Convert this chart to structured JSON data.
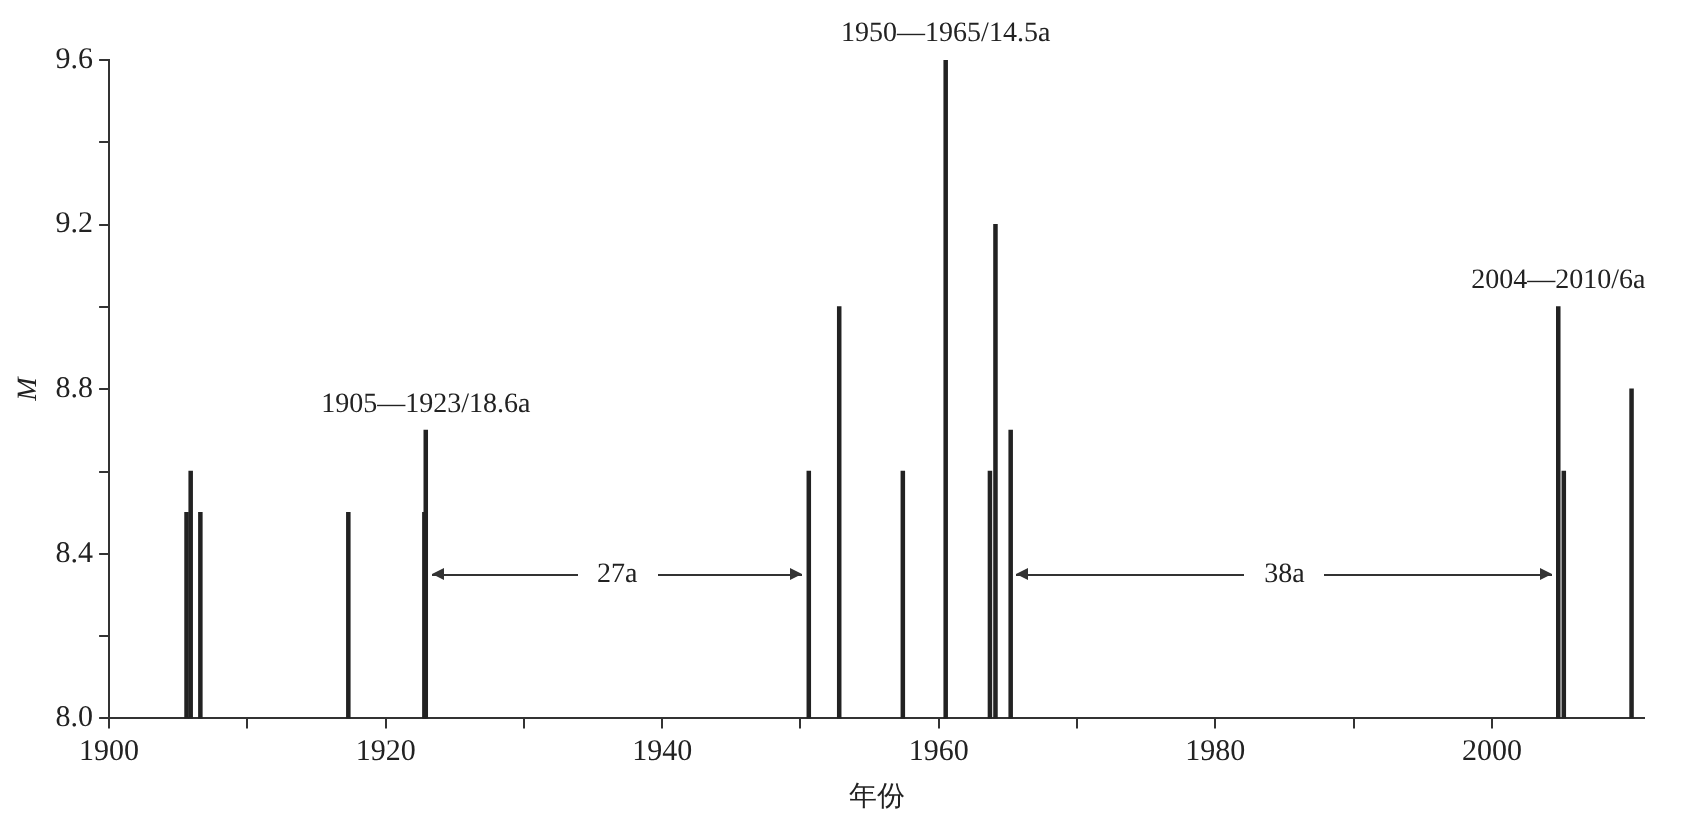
{
  "chart_data": {
    "type": "bar",
    "xlabel": "年份",
    "ylabel": "M",
    "x": [
      1905.6,
      1905.9,
      1906.6,
      1917.3,
      1922.8,
      1922.9,
      1950.6,
      1952.8,
      1957.4,
      1960.5,
      1963.7,
      1964.1,
      1965.2,
      2004.8,
      2005.2,
      2010.1
    ],
    "values": [
      8.5,
      8.6,
      8.5,
      8.5,
      8.5,
      8.7,
      8.6,
      9.0,
      8.6,
      9.6,
      8.6,
      9.2,
      8.7,
      9.0,
      8.6,
      8.8
    ],
    "color": "#222222",
    "xlim": [
      1900,
      2011
    ],
    "xticks": [
      1900,
      {
        "value": 1910,
        "label": null
      },
      1920,
      {
        "value": 1930,
        "label": null
      },
      1940,
      {
        "value": 1950,
        "label": null
      },
      1960,
      {
        "value": 1970,
        "label": null
      },
      1980,
      {
        "value": 1990,
        "label": null
      },
      2000
    ],
    "ylim": [
      8.0,
      9.6
    ],
    "yticks": [
      {
        "value": 8.0,
        "label": "8.0"
      },
      {
        "value": 8.2,
        "label": null
      },
      8.4,
      {
        "value": 8.6,
        "label": null
      },
      8.8,
      {
        "value": 9.0,
        "label": null
      },
      9.2,
      {
        "value": 9.4,
        "label": null
      },
      9.6
    ],
    "grid": false,
    "legend": false,
    "annotations": [
      {
        "text": "1905—1923/18.6a",
        "x": 1922.9,
        "y": 8.7
      },
      {
        "text": "1950—1965/14.5a",
        "x": 1960.5,
        "y": 9.6
      },
      {
        "text": "2004—2010/6a",
        "x": 2004.8,
        "y": 9.0
      },
      {
        "text": "27a",
        "x": 1950.6,
        "y": 8.35
      },
      {
        "text": "38a",
        "x": 2004.8,
        "y": 8.35
      }
    ]
  }
}
